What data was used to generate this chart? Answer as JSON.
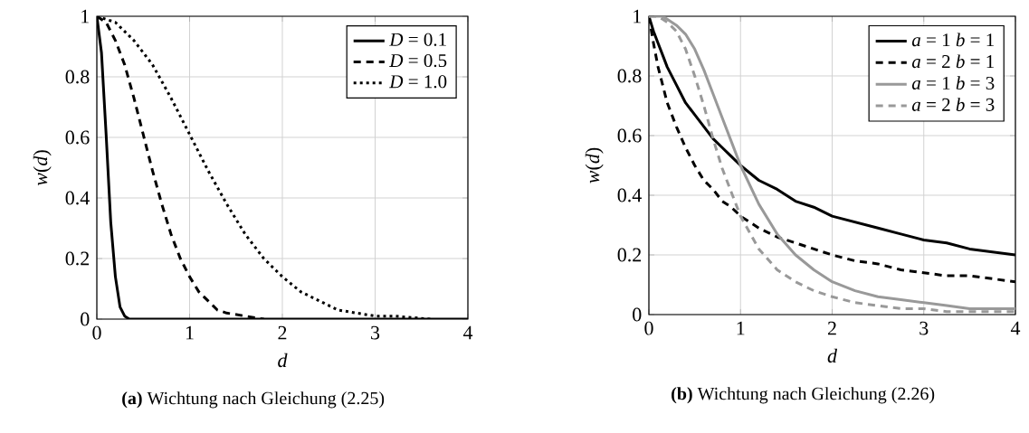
{
  "chart_data": [
    {
      "type": "line",
      "title": "**(a)** Wichtung nach Gleichung (2.25)",
      "xlabel": "d",
      "ylabel": "*w*(*d*)",
      "xlim": [
        0,
        4
      ],
      "ylim": [
        0,
        1
      ],
      "xticks": [
        0,
        1,
        2,
        3,
        4
      ],
      "yticks": [
        0,
        0.2,
        0.4,
        0.6,
        0.8,
        1
      ],
      "grid": true,
      "legend": "top right",
      "series": [
        {
          "name": "*D* = 0.1",
          "color": "#000000",
          "line_style": "solid",
          "x": [
            0,
            0.05,
            0.1,
            0.15,
            0.2,
            0.25,
            0.3,
            0.35,
            0.4,
            1,
            2,
            3,
            4
          ],
          "values": [
            1,
            0.88,
            0.61,
            0.32,
            0.14,
            0.04,
            0.01,
            0,
            0,
            0,
            0,
            0,
            0
          ]
        },
        {
          "name": "*D* = 0.5",
          "color": "#000000",
          "line_style": "dashed",
          "x": [
            0,
            0.1,
            0.2,
            0.3,
            0.4,
            0.5,
            0.6,
            0.7,
            0.8,
            0.9,
            1.0,
            1.1,
            1.2,
            1.3,
            1.4,
            1.6,
            1.8
          ],
          "values": [
            1,
            0.98,
            0.92,
            0.84,
            0.73,
            0.61,
            0.49,
            0.38,
            0.28,
            0.2,
            0.14,
            0.09,
            0.06,
            0.03,
            0.02,
            0.01,
            0
          ]
        },
        {
          "name": "*D* = 1.0",
          "color": "#000000",
          "line_style": "dotted",
          "x": [
            0,
            0.2,
            0.4,
            0.6,
            0.8,
            1.0,
            1.2,
            1.4,
            1.6,
            1.8,
            2.0,
            2.2,
            2.4,
            2.6,
            2.8,
            3.0,
            3.2,
            3.6
          ],
          "values": [
            1,
            0.98,
            0.92,
            0.84,
            0.73,
            0.61,
            0.49,
            0.38,
            0.28,
            0.2,
            0.14,
            0.09,
            0.06,
            0.03,
            0.02,
            0.01,
            0.01,
            0
          ]
        }
      ]
    },
    {
      "type": "line",
      "title": "**(b)** Wichtung nach Gleichung (2.26)",
      "xlabel": "d",
      "ylabel": "*w*(*d*)",
      "xlim": [
        0,
        4
      ],
      "ylim": [
        0,
        1
      ],
      "xticks": [
        0,
        1,
        2,
        3,
        4
      ],
      "yticks": [
        0,
        0.2,
        0.4,
        0.6,
        0.8,
        1
      ],
      "grid": true,
      "legend": "top right",
      "x": [
        0,
        0.05,
        0.1,
        0.15,
        0.2,
        0.3,
        0.4,
        0.5,
        0.6,
        0.7,
        0.8,
        0.9,
        1,
        1.2,
        1.4,
        1.6,
        1.8,
        2,
        2.25,
        2.5,
        2.75,
        3,
        3.25,
        3.5,
        3.75,
        4
      ],
      "series": [
        {
          "name": "*a* = 1 *b* = 1",
          "color": "#000000",
          "line_style": "solid",
          "values": [
            1,
            0.95,
            0.91,
            0.87,
            0.83,
            0.77,
            0.71,
            0.67,
            0.63,
            0.59,
            0.56,
            0.53,
            0.5,
            0.45,
            0.42,
            0.38,
            0.36,
            0.33,
            0.31,
            0.29,
            0.27,
            0.25,
            0.24,
            0.22,
            0.21,
            0.2
          ]
        },
        {
          "name": "*a* = 2 *b* = 1",
          "color": "#000000",
          "line_style": "dashed",
          "values": [
            1,
            0.91,
            0.83,
            0.77,
            0.71,
            0.63,
            0.56,
            0.5,
            0.45,
            0.42,
            0.38,
            0.36,
            0.33,
            0.29,
            0.26,
            0.24,
            0.22,
            0.2,
            0.18,
            0.17,
            0.15,
            0.14,
            0.13,
            0.13,
            0.12,
            0.11
          ]
        },
        {
          "name": "*a* = 1 *b* = 3",
          "color": "#999999",
          "line_style": "solid",
          "values": [
            1,
            1,
            1,
            1,
            0.99,
            0.97,
            0.94,
            0.89,
            0.82,
            0.74,
            0.66,
            0.58,
            0.5,
            0.37,
            0.27,
            0.2,
            0.15,
            0.11,
            0.08,
            0.06,
            0.05,
            0.04,
            0.03,
            0.02,
            0.02,
            0.02
          ]
        },
        {
          "name": "*a* = 2 *b* = 3",
          "color": "#999999",
          "line_style": "dashed",
          "values": [
            1,
            1,
            1,
            0.99,
            0.98,
            0.95,
            0.89,
            0.8,
            0.7,
            0.59,
            0.49,
            0.41,
            0.33,
            0.22,
            0.15,
            0.11,
            0.08,
            0.06,
            0.04,
            0.03,
            0.02,
            0.02,
            0.01,
            0.01,
            0.01,
            0.01
          ]
        }
      ]
    }
  ]
}
